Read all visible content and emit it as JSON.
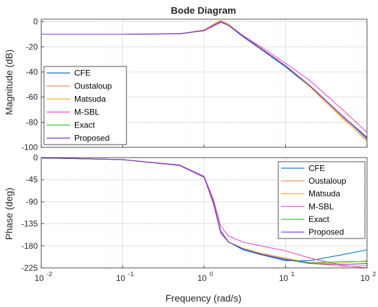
{
  "chart_data": [
    {
      "type": "line",
      "title": "Bode Diagram",
      "ylabel": "Magnitude (dB)",
      "xlabel": "",
      "xscale": "log",
      "xlim": [
        0.01,
        100
      ],
      "ylim": [
        -100,
        2
      ],
      "yticks": [
        0,
        -20,
        -40,
        -60,
        -80,
        -100
      ],
      "yticklabels": [
        "0",
        "-20",
        "-40",
        "-60",
        "-80",
        "-100"
      ],
      "grid": true,
      "legend": "lower-left",
      "series": [
        {
          "name": "CFE",
          "color": "#0072bd",
          "x": [
            0.01,
            0.1,
            0.5,
            1,
            1.3,
            1.6,
            2,
            3,
            5,
            10,
            20,
            50,
            100
          ],
          "y": [
            -10,
            -10,
            -9.6,
            -7,
            -3,
            0,
            -3,
            -12,
            -22,
            -36,
            -52,
            -75,
            -92
          ]
        },
        {
          "name": "Oustaloup",
          "color": "#f28e6b",
          "x": [
            0.01,
            0.1,
            0.5,
            1,
            1.3,
            1.6,
            2,
            3,
            5,
            10,
            20,
            50,
            100
          ],
          "y": [
            -10,
            -10,
            -9.6,
            -6.5,
            -2,
            1,
            -2,
            -11,
            -21,
            -35,
            -51,
            -76,
            -95
          ]
        },
        {
          "name": "Matsuda",
          "color": "#edb120",
          "x": [
            0.01,
            0.1,
            0.5,
            1,
            1.3,
            1.6,
            2,
            3,
            5,
            10,
            20,
            50,
            100
          ],
          "y": [
            -10,
            -10,
            -9.6,
            -6.8,
            -2.5,
            0.5,
            -2.5,
            -11.5,
            -21.5,
            -35,
            -52,
            -77,
            -94
          ]
        },
        {
          "name": "M-SBL",
          "color": "#e645c8",
          "x": [
            0.01,
            0.1,
            0.5,
            1,
            1.3,
            1.6,
            2,
            3,
            5,
            10,
            20,
            50,
            100
          ],
          "y": [
            -10,
            -10,
            -9.6,
            -7.2,
            -3.5,
            -0.5,
            -3,
            -11,
            -20,
            -33,
            -47,
            -70,
            -88
          ]
        },
        {
          "name": "Exact",
          "color": "#33cc33",
          "x": [
            0.01,
            0.1,
            0.5,
            1,
            1.3,
            1.6,
            2,
            3,
            5,
            10,
            20,
            50,
            100
          ],
          "y": [
            -10,
            -10,
            -9.6,
            -7,
            -3,
            0,
            -3,
            -11.5,
            -21.5,
            -35,
            -51,
            -75,
            -93
          ]
        },
        {
          "name": "Proposed",
          "color": "#7e2fd6",
          "x": [
            0.01,
            0.1,
            0.5,
            1,
            1.3,
            1.6,
            2,
            3,
            5,
            10,
            20,
            50,
            100
          ],
          "y": [
            -10,
            -10,
            -9.6,
            -7,
            -3,
            0,
            -3,
            -11.5,
            -21.5,
            -35,
            -51,
            -75,
            -93
          ]
        }
      ]
    },
    {
      "type": "line",
      "title": "",
      "ylabel": "Phase (deg)",
      "xlabel": "Frequency  (rad/s)",
      "xscale": "log",
      "xlim": [
        0.01,
        100
      ],
      "ylim": [
        -225,
        0
      ],
      "xticks": [
        0.01,
        0.1,
        1,
        10,
        100
      ],
      "xticklabels": [
        [
          "10",
          "-2"
        ],
        [
          "10",
          "-1"
        ],
        [
          "10",
          "0"
        ],
        [
          "10",
          "1"
        ],
        [
          "10",
          "2"
        ]
      ],
      "yticks": [
        0,
        -45,
        -90,
        -135,
        -180,
        -225
      ],
      "yticklabels": [
        "0",
        "-45",
        "-90",
        "-135",
        "-180",
        "-225"
      ],
      "grid": true,
      "legend": "upper-right",
      "series": [
        {
          "name": "CFE",
          "color": "#0072bd",
          "x": [
            0.01,
            0.1,
            0.5,
            1,
            1.3,
            1.6,
            2,
            3,
            5,
            10,
            20,
            50,
            100
          ],
          "y": [
            -0.5,
            -4,
            -16,
            -40,
            -90,
            -150,
            -172,
            -188,
            -198,
            -210,
            -210,
            -198,
            -188
          ]
        },
        {
          "name": "Oustaloup",
          "color": "#f28e6b",
          "x": [
            0.01,
            0.1,
            0.5,
            1,
            1.3,
            1.6,
            2,
            3,
            5,
            10,
            20,
            50,
            100
          ],
          "y": [
            -0.5,
            -4,
            -16,
            -40,
            -95,
            -155,
            -173,
            -185,
            -195,
            -205,
            -215,
            -222,
            -220
          ]
        },
        {
          "name": "Matsuda",
          "color": "#edb120",
          "x": [
            0.01,
            0.1,
            0.5,
            1,
            1.3,
            1.6,
            2,
            3,
            5,
            10,
            20,
            50,
            100
          ],
          "y": [
            -0.5,
            -4,
            -16,
            -40,
            -92,
            -152,
            -172,
            -185,
            -196,
            -208,
            -215,
            -215,
            -210
          ]
        },
        {
          "name": "M-SBL",
          "color": "#e645c8",
          "x": [
            0.01,
            0.1,
            0.5,
            1,
            1.3,
            1.6,
            2,
            3,
            5,
            10,
            20,
            50,
            100
          ],
          "y": [
            -0.5,
            -4,
            -15,
            -38,
            -85,
            -140,
            -160,
            -172,
            -180,
            -190,
            -205,
            -220,
            -225
          ]
        },
        {
          "name": "Exact",
          "color": "#33cc33",
          "x": [
            0.01,
            0.1,
            0.5,
            1,
            1.3,
            1.6,
            2,
            3,
            5,
            10,
            20,
            50,
            100
          ],
          "y": [
            -0.5,
            -4,
            -16,
            -40,
            -92,
            -152,
            -172,
            -186,
            -197,
            -207,
            -214,
            -212,
            -212
          ]
        },
        {
          "name": "Proposed",
          "color": "#7e2fd6",
          "x": [
            0.01,
            0.1,
            0.5,
            1,
            1.3,
            1.6,
            2,
            3,
            5,
            10,
            20,
            50,
            100
          ],
          "y": [
            -0.5,
            -4,
            -16,
            -40,
            -92,
            -152,
            -172,
            -186,
            -197,
            -208,
            -216,
            -218,
            -216
          ]
        }
      ]
    }
  ]
}
